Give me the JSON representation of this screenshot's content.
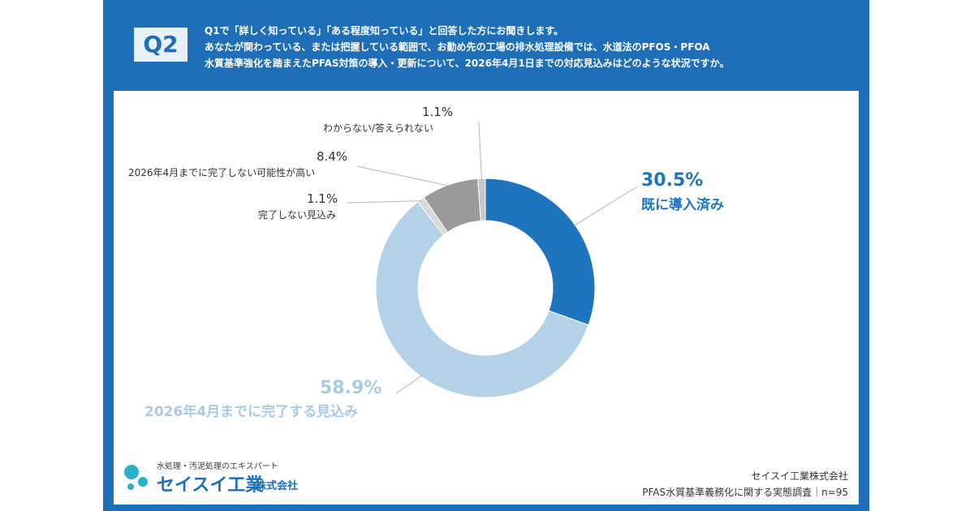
{
  "header": {
    "badge": "Q2",
    "question_lines": [
      "Q1で「詳しく知っている」「ある程度知っている」と回答した方にお聞きします。",
      "あなたが関わっている、または把握している範囲で、お勤め先の工場の排水処理設備では、水道法のPFOS・PFOA",
      "水質基準強化を踏まえたPFAS対策の導入・更新について、2026年4月1日までの対応見込みはどのような状況ですか。"
    ]
  },
  "colors": {
    "frame": "#1f6fb8",
    "dark_blue": "#1e74bd",
    "light_blue": "#b3d2e8",
    "gray": "#9b9b9b",
    "light_gray": "#cfcfcf"
  },
  "chart_data": {
    "type": "pie",
    "donut": true,
    "slices": [
      {
        "label": "既に導入済み",
        "value": 30.5,
        "value_label": "30.5%",
        "color": "#1e74bd"
      },
      {
        "label": "2026年4月までに完了する見込み",
        "value": 58.9,
        "value_label": "58.9%",
        "color": "#b3d2e8"
      },
      {
        "label": "完了しない見込み",
        "value": 1.1,
        "value_label": "1.1%",
        "color": "#d9d9d9"
      },
      {
        "label": "2026年4月までに完了しない可能性が高い",
        "value": 8.4,
        "value_label": "8.4%",
        "color": "#9b9b9b"
      },
      {
        "label": "わからない/答えられない",
        "value": 1.1,
        "value_label": "1.1%",
        "color": "#c8c8c8"
      }
    ]
  },
  "logo": {
    "tagline": "水処理・汚泥処理のエキスパート",
    "name": "セイスイ工業",
    "corp": "株式会社"
  },
  "source": {
    "company": "セイスイ工業株式会社",
    "survey": "PFAS水質基準義務化に関する実態調査｜n=95"
  }
}
